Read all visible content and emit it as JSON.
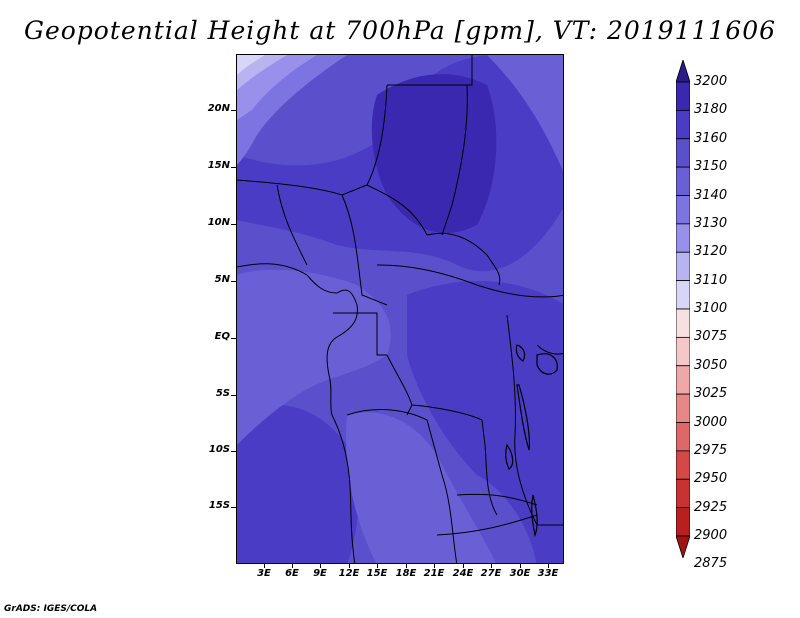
{
  "title": "Geopotential Height at 700hPa [gpm], VT: 2019111606",
  "credit": "GrADS: IGES/COLA",
  "latitude_labels": [
    "20N",
    "15N",
    "10N",
    "5N",
    "EQ",
    "5S",
    "10S",
    "15S"
  ],
  "longitude_labels": [
    "3E",
    "6E",
    "9E",
    "12E",
    "15E",
    "18E",
    "21E",
    "24E",
    "27E",
    "30E",
    "33E"
  ],
  "colorbar": {
    "levels": [
      "3200",
      "3180",
      "3160",
      "3150",
      "3140",
      "3130",
      "3120",
      "3110",
      "3100",
      "3075",
      "3050",
      "3025",
      "3000",
      "2975",
      "2950",
      "2925",
      "2900",
      "2875"
    ],
    "colors": [
      "#2a1a8c",
      "#3a28b0",
      "#4a3cc4",
      "#5a50cc",
      "#6a60d6",
      "#7c74e0",
      "#9890ea",
      "#b8b4f2",
      "#d8d6f8",
      "#f6e0e0",
      "#f4c8c8",
      "#eea8a8",
      "#e68888",
      "#de6868",
      "#d44848",
      "#c83232",
      "#b82020",
      "#a01414"
    ]
  },
  "map_field": {
    "variable": "Geopotential Height",
    "level": "700hPa",
    "units": "gpm",
    "valid_time": "2019111606",
    "lon_range": [
      "0E",
      "34E"
    ],
    "lat_range": [
      "20S",
      "24N"
    ]
  }
}
